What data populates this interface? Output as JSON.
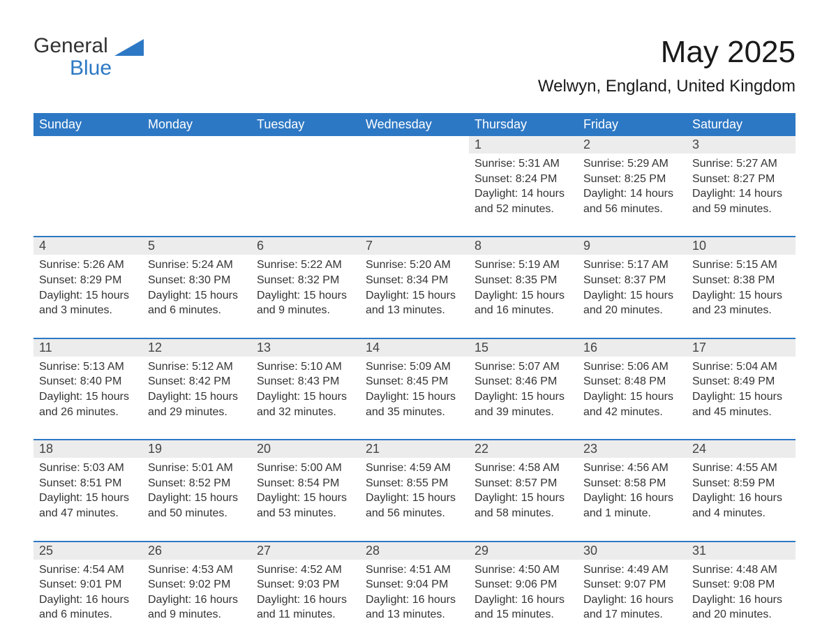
{
  "brand": {
    "part1": "General",
    "part2": "Blue"
  },
  "title": "May 2025",
  "location": "Welwyn, England, United Kingdom",
  "colors": {
    "accent": "#2d78c4",
    "dayBg": "#ececec",
    "text": "#333333",
    "bg": "#ffffff"
  },
  "dayHeaders": [
    "Sunday",
    "Monday",
    "Tuesday",
    "Wednesday",
    "Thursday",
    "Friday",
    "Saturday"
  ],
  "weeks": [
    {
      "days": [
        "",
        "",
        "",
        "",
        "1",
        "2",
        "3"
      ],
      "info": [
        "",
        "",
        "",
        "",
        "Sunrise: 5:31 AM\nSunset: 8:24 PM\nDaylight: 14 hours and 52 minutes.",
        "Sunrise: 5:29 AM\nSunset: 8:25 PM\nDaylight: 14 hours and 56 minutes.",
        "Sunrise: 5:27 AM\nSunset: 8:27 PM\nDaylight: 14 hours and 59 minutes."
      ]
    },
    {
      "days": [
        "4",
        "5",
        "6",
        "7",
        "8",
        "9",
        "10"
      ],
      "info": [
        "Sunrise: 5:26 AM\nSunset: 8:29 PM\nDaylight: 15 hours and 3 minutes.",
        "Sunrise: 5:24 AM\nSunset: 8:30 PM\nDaylight: 15 hours and 6 minutes.",
        "Sunrise: 5:22 AM\nSunset: 8:32 PM\nDaylight: 15 hours and 9 minutes.",
        "Sunrise: 5:20 AM\nSunset: 8:34 PM\nDaylight: 15 hours and 13 minutes.",
        "Sunrise: 5:19 AM\nSunset: 8:35 PM\nDaylight: 15 hours and 16 minutes.",
        "Sunrise: 5:17 AM\nSunset: 8:37 PM\nDaylight: 15 hours and 20 minutes.",
        "Sunrise: 5:15 AM\nSunset: 8:38 PM\nDaylight: 15 hours and 23 minutes."
      ]
    },
    {
      "days": [
        "11",
        "12",
        "13",
        "14",
        "15",
        "16",
        "17"
      ],
      "info": [
        "Sunrise: 5:13 AM\nSunset: 8:40 PM\nDaylight: 15 hours and 26 minutes.",
        "Sunrise: 5:12 AM\nSunset: 8:42 PM\nDaylight: 15 hours and 29 minutes.",
        "Sunrise: 5:10 AM\nSunset: 8:43 PM\nDaylight: 15 hours and 32 minutes.",
        "Sunrise: 5:09 AM\nSunset: 8:45 PM\nDaylight: 15 hours and 35 minutes.",
        "Sunrise: 5:07 AM\nSunset: 8:46 PM\nDaylight: 15 hours and 39 minutes.",
        "Sunrise: 5:06 AM\nSunset: 8:48 PM\nDaylight: 15 hours and 42 minutes.",
        "Sunrise: 5:04 AM\nSunset: 8:49 PM\nDaylight: 15 hours and 45 minutes."
      ]
    },
    {
      "days": [
        "18",
        "19",
        "20",
        "21",
        "22",
        "23",
        "24"
      ],
      "info": [
        "Sunrise: 5:03 AM\nSunset: 8:51 PM\nDaylight: 15 hours and 47 minutes.",
        "Sunrise: 5:01 AM\nSunset: 8:52 PM\nDaylight: 15 hours and 50 minutes.",
        "Sunrise: 5:00 AM\nSunset: 8:54 PM\nDaylight: 15 hours and 53 minutes.",
        "Sunrise: 4:59 AM\nSunset: 8:55 PM\nDaylight: 15 hours and 56 minutes.",
        "Sunrise: 4:58 AM\nSunset: 8:57 PM\nDaylight: 15 hours and 58 minutes.",
        "Sunrise: 4:56 AM\nSunset: 8:58 PM\nDaylight: 16 hours and 1 minute.",
        "Sunrise: 4:55 AM\nSunset: 8:59 PM\nDaylight: 16 hours and 4 minutes."
      ]
    },
    {
      "days": [
        "25",
        "26",
        "27",
        "28",
        "29",
        "30",
        "31"
      ],
      "info": [
        "Sunrise: 4:54 AM\nSunset: 9:01 PM\nDaylight: 16 hours and 6 minutes.",
        "Sunrise: 4:53 AM\nSunset: 9:02 PM\nDaylight: 16 hours and 9 minutes.",
        "Sunrise: 4:52 AM\nSunset: 9:03 PM\nDaylight: 16 hours and 11 minutes.",
        "Sunrise: 4:51 AM\nSunset: 9:04 PM\nDaylight: 16 hours and 13 minutes.",
        "Sunrise: 4:50 AM\nSunset: 9:06 PM\nDaylight: 16 hours and 15 minutes.",
        "Sunrise: 4:49 AM\nSunset: 9:07 PM\nDaylight: 16 hours and 17 minutes.",
        "Sunrise: 4:48 AM\nSunset: 9:08 PM\nDaylight: 16 hours and 20 minutes."
      ]
    }
  ]
}
